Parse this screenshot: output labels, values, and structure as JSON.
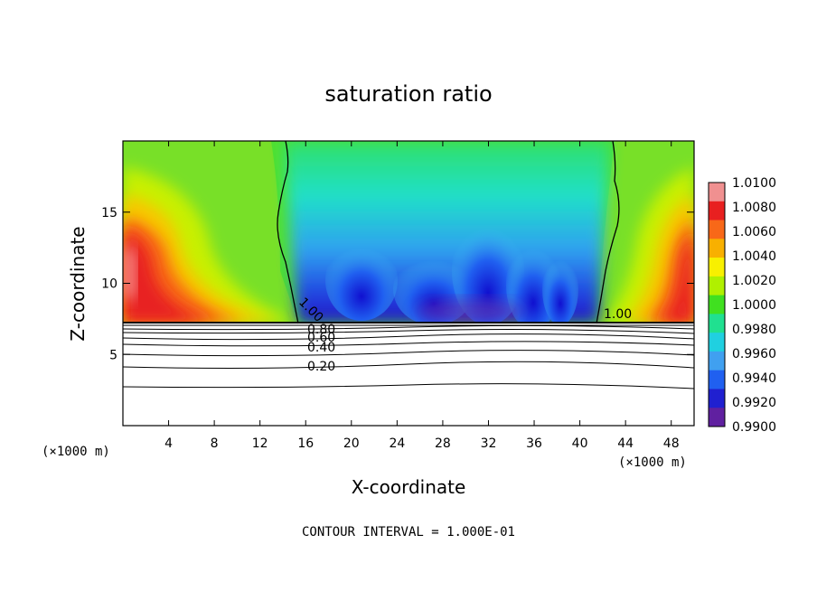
{
  "chart_data": {
    "type": "heatmap",
    "title": "saturation ratio",
    "xlabel": "X-coordinate",
    "ylabel": "Z-coordinate",
    "x_unit": "(×1000 m)",
    "x_unit_right": "(×1000 m)",
    "xlim": [
      0,
      50
    ],
    "ylim": [
      0,
      20
    ],
    "x_ticks": [
      "4",
      "8",
      "12",
      "16",
      "20",
      "24",
      "28",
      "32",
      "36",
      "40",
      "44",
      "48"
    ],
    "y_ticks": [
      "5",
      "10",
      "15"
    ],
    "colorbar_ticks": [
      "1.0100",
      "1.0080",
      "1.0060",
      "1.0040",
      "1.0020",
      "1.0000",
      "0.9980",
      "0.9960",
      "0.9940",
      "0.9920",
      "0.9900"
    ],
    "colorbar_range": [
      0.99,
      1.01
    ],
    "contour_labels": [
      "1.00",
      "1.00",
      "0.80",
      "0.60",
      "0.40",
      "0.20"
    ],
    "footer": "CONTOUR INTERVAL = 1.000E-01"
  }
}
